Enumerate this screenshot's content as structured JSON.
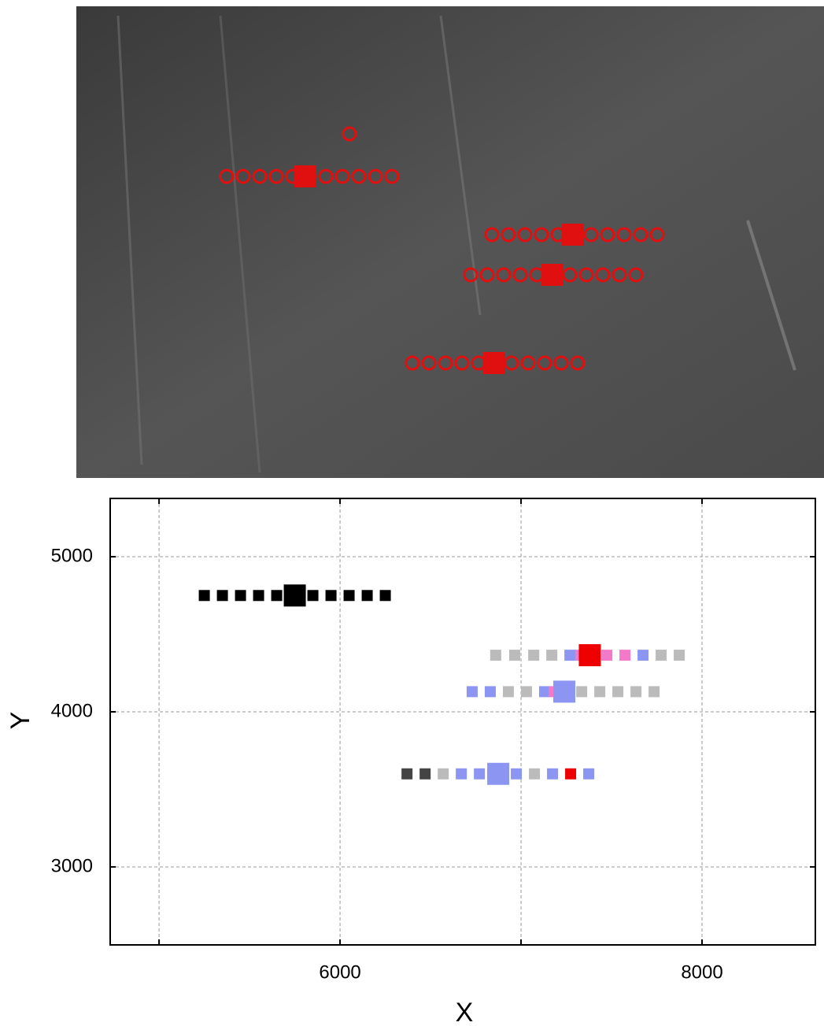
{
  "chart_data": {
    "type": "scatter",
    "x_label": "X",
    "y_label": "Y",
    "xlim": [
      4730,
      8626
    ],
    "ylim": [
      2497,
      5376
    ],
    "xticks": [
      6000,
      8000
    ],
    "xminor_ticks": [
      5000,
      7000
    ],
    "yticks": [
      3000,
      4000,
      5000
    ],
    "grid": true,
    "series": [
      {
        "x": [
          5250,
          5350,
          5450,
          5550,
          5650,
          5750,
          5850,
          5950,
          6050,
          6150,
          6250
        ],
        "y": [
          4750,
          4750,
          4750,
          4750,
          4750,
          4750,
          4750,
          4750,
          4750,
          4750,
          4750
        ],
        "colors": [
          "#000000",
          "#000000",
          "#000000",
          "#000000",
          "#000000",
          "#000000",
          "#000000",
          "#000000",
          "#000000",
          "#000000",
          "#000000"
        ],
        "highlight_index": 5
      },
      {
        "x": [
          6860,
          6965,
          7070,
          7170,
          7270,
          7330,
          7380,
          7474,
          7574,
          7674,
          7774,
          7874
        ],
        "y": [
          4365,
          4365,
          4365,
          4365,
          4365,
          4365,
          4365,
          4365,
          4365,
          4365,
          4365,
          4365
        ],
        "colors": [
          "#bbbbbb",
          "#bbbbbb",
          "#bbbbbb",
          "#bbbbbb",
          "#8c96f2",
          "#f27ac8",
          "#ee0000",
          "#f27ac8",
          "#f27ac8",
          "#8c96f2",
          "#bbbbbb",
          "#bbbbbb"
        ],
        "highlight_index": 6
      },
      {
        "x": [
          6730,
          6830,
          6930,
          7030,
          7130,
          7183,
          7239,
          7335,
          7435,
          7535,
          7635,
          7735
        ],
        "y": [
          4130,
          4130,
          4130,
          4130,
          4130,
          4130,
          4130,
          4130,
          4130,
          4130,
          4130,
          4130
        ],
        "colors": [
          "#8c96f2",
          "#8c96f2",
          "#bbbbbb",
          "#bbbbbb",
          "#8c96f2",
          "#f27ac8",
          "#8c96f2",
          "#bbbbbb",
          "#bbbbbb",
          "#bbbbbb",
          "#bbbbbb",
          "#bbbbbb"
        ],
        "highlight_index": 6
      },
      {
        "x": [
          6370,
          6470,
          6570,
          6670,
          6770,
          6843,
          6874,
          6974,
          7074,
          7174,
          7274,
          7374
        ],
        "y": [
          3600,
          3600,
          3600,
          3600,
          3600,
          3600,
          3600,
          3600,
          3600,
          3600,
          3600,
          3600
        ],
        "colors": [
          "#444444",
          "#444444",
          "#bbbbbb",
          "#8c96f2",
          "#8c96f2",
          "#f27ac8",
          "#8c96f2",
          "#8c96f2",
          "#bbbbbb",
          "#8c96f2",
          "#ee0000",
          "#8c96f2"
        ],
        "highlight_index": 6
      }
    ]
  }
}
